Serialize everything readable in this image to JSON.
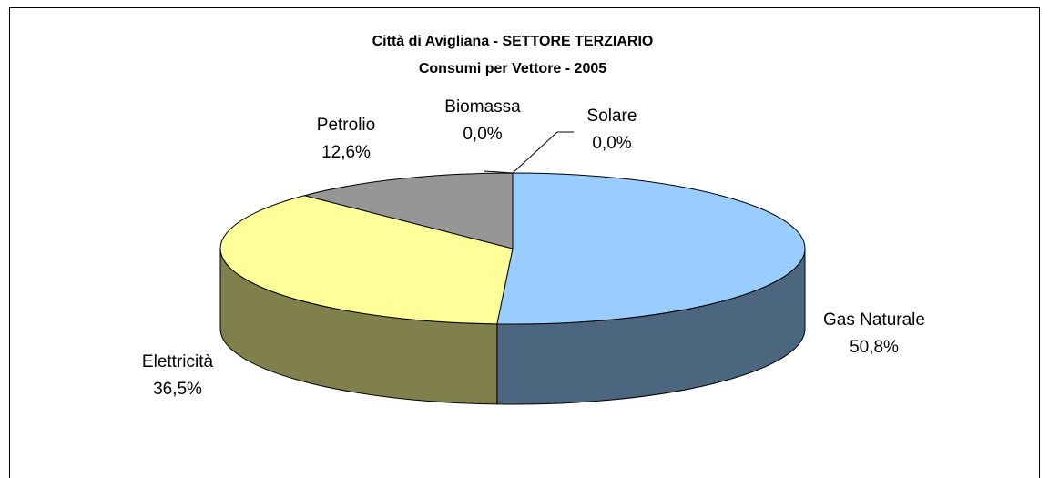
{
  "chart_data": {
    "type": "pie3d",
    "title": "Città di Avigliana - SETTORE TERZIARIO",
    "subtitle": "Consumi per Vettore - 2005",
    "categories": [
      "Gas Naturale",
      "Elettricità",
      "Petrolio",
      "Biomassa",
      "Solare"
    ],
    "values": [
      50.8,
      36.5,
      12.6,
      0.0,
      0.0
    ],
    "value_labels": [
      "50,8%",
      "36,5%",
      "12,6%",
      "0,0%",
      "0,0%"
    ],
    "colors": [
      "#99ccff",
      "#ffff99",
      "#969696",
      "#993366",
      "#ffffcc"
    ]
  }
}
